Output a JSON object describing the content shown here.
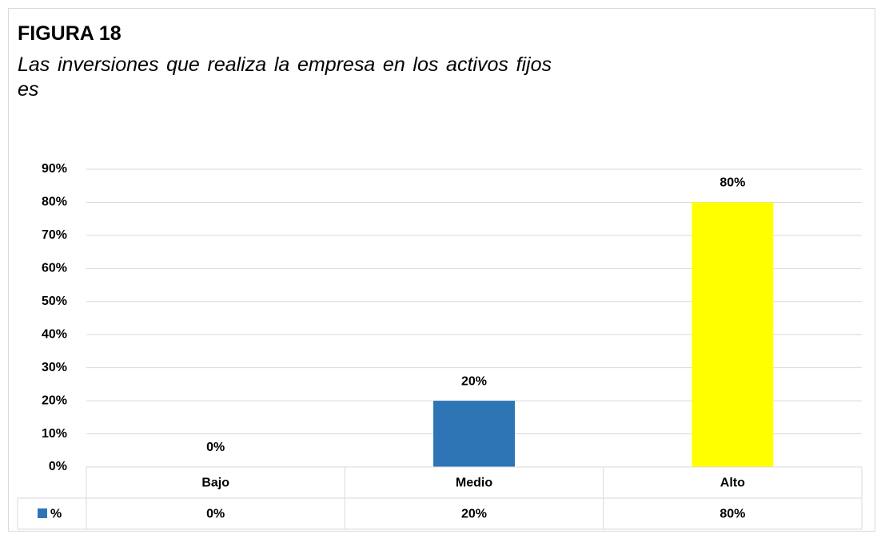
{
  "chart_data": {
    "type": "bar",
    "title": "FIGURA 18",
    "subtitle": "Las inversiones que realiza la empresa en los activos fijos es",
    "categories": [
      "Bajo",
      "Medio",
      "Alto"
    ],
    "series": [
      {
        "name": "%",
        "color": "#2e75b6",
        "colors": [
          "#2e75b6",
          "#2e75b6",
          "#ffff00"
        ],
        "values": [
          0,
          20,
          80
        ],
        "value_labels": [
          "0%",
          "20%",
          "80%"
        ]
      }
    ],
    "ylim": [
      0,
      90
    ],
    "yticks": [
      {
        "value": 0,
        "label": "0%"
      },
      {
        "value": 10,
        "label": "10%"
      },
      {
        "value": 20,
        "label": "20%"
      },
      {
        "value": 30,
        "label": "30%"
      },
      {
        "value": 40,
        "label": "40%"
      },
      {
        "value": 50,
        "label": "50%"
      },
      {
        "value": 60,
        "label": "60%"
      },
      {
        "value": 70,
        "label": "70%"
      },
      {
        "value": 80,
        "label": "80%"
      },
      {
        "value": 90,
        "label": "90%"
      }
    ],
    "grid": true,
    "data_table": true
  }
}
